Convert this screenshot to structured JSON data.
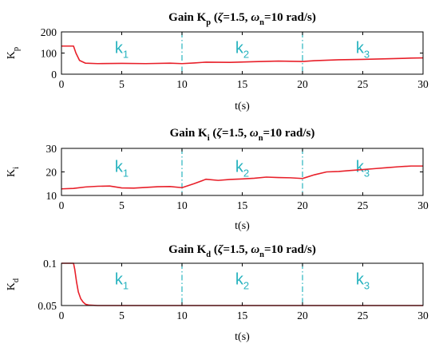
{
  "chart_data": [
    {
      "type": "line",
      "title": {
        "prefix": "Gain K",
        "prefix_sub": "p",
        "rest1": " (",
        "zeta": "ζ",
        "rest2": "=1.5, ",
        "omega": "ω",
        "omega_sub": "n",
        "rest3": "=10 rad/s)"
      },
      "ylabel": "K",
      "ylabel_sub": "p",
      "xlabel": "t(s)",
      "xlim": [
        0,
        30
      ],
      "ylim": [
        0,
        200
      ],
      "yticks": [
        0,
        100,
        200
      ],
      "xticks": [
        0,
        5,
        10,
        15,
        20,
        25,
        30
      ],
      "ytick_labels": [
        "0",
        "100",
        "200"
      ],
      "xtick_labels": [
        "0",
        "5",
        "10",
        "15",
        "20",
        "25",
        "30"
      ],
      "vlines": [
        10,
        20
      ],
      "segments": [
        {
          "label": "k",
          "sub": "1",
          "x": 5
        },
        {
          "label": "k",
          "sub": "2",
          "x": 15
        },
        {
          "label": "k",
          "sub": "3",
          "x": 25
        }
      ],
      "series": [
        {
          "color": "#e8202a",
          "x": [
            0,
            1,
            1.2,
            1.5,
            2,
            3,
            5,
            7,
            9,
            10,
            11,
            12,
            14,
            16,
            18,
            20,
            21,
            23,
            25,
            27,
            29,
            30
          ],
          "y": [
            133,
            133,
            100,
            65,
            52,
            50,
            51,
            50,
            52,
            50,
            53,
            57,
            56,
            59,
            62,
            60,
            64,
            68,
            70,
            73,
            76,
            77
          ]
        }
      ]
    },
    {
      "type": "line",
      "title": {
        "prefix": "Gain K",
        "prefix_sub": "i",
        "rest1": " (",
        "zeta": "ζ",
        "rest2": "=1.5, ",
        "omega": "ω",
        "omega_sub": "n",
        "rest3": "=10 rad/s)"
      },
      "ylabel": "K",
      "ylabel_sub": "i",
      "xlabel": "t(s)",
      "xlim": [
        0,
        30
      ],
      "ylim": [
        10,
        30
      ],
      "yticks": [
        10,
        20,
        30
      ],
      "xticks": [
        0,
        5,
        10,
        15,
        20,
        25,
        30
      ],
      "ytick_labels": [
        "10",
        "20",
        "30"
      ],
      "xtick_labels": [
        "0",
        "5",
        "10",
        "15",
        "20",
        "25",
        "30"
      ],
      "vlines": [
        10,
        20
      ],
      "segments": [
        {
          "label": "k",
          "sub": "1",
          "x": 5
        },
        {
          "label": "k",
          "sub": "2",
          "x": 15
        },
        {
          "label": "k",
          "sub": "3",
          "x": 25
        }
      ],
      "series": [
        {
          "color": "#e8202a",
          "x": [
            0,
            1,
            2,
            3,
            4,
            5,
            6,
            7,
            8,
            9,
            10,
            11,
            12,
            13,
            14,
            15,
            16,
            17,
            18,
            19,
            20,
            21,
            22,
            23,
            24,
            25,
            26,
            27,
            28,
            29,
            30
          ],
          "y": [
            12.8,
            13.0,
            13.6,
            13.9,
            14.0,
            13.2,
            13.1,
            13.4,
            13.7,
            13.8,
            13.3,
            15.0,
            16.9,
            16.4,
            16.8,
            17.0,
            17.3,
            17.8,
            17.6,
            17.5,
            17.2,
            18.8,
            20.0,
            20.2,
            20.6,
            21.0,
            21.4,
            21.8,
            22.2,
            22.5,
            22.5
          ]
        }
      ]
    },
    {
      "type": "line",
      "title": {
        "prefix": "Gain K",
        "prefix_sub": "d",
        "rest1": " (",
        "zeta": "ζ",
        "rest2": "=1.5, ",
        "omega": "ω",
        "omega_sub": "n",
        "rest3": "=10 rad/s)"
      },
      "ylabel": "K",
      "ylabel_sub": "d",
      "xlabel": "t(s)",
      "xlim": [
        0,
        30
      ],
      "ylim": [
        0.05,
        0.1
      ],
      "yticks": [
        0.05,
        0.1
      ],
      "xticks": [
        0,
        5,
        10,
        15,
        20,
        25,
        30
      ],
      "ytick_labels": [
        "0.05",
        "0.1"
      ],
      "xtick_labels": [
        "0",
        "5",
        "10",
        "15",
        "20",
        "25",
        "30"
      ],
      "vlines": [
        10,
        20
      ],
      "segments": [
        {
          "label": "k",
          "sub": "1",
          "x": 5
        },
        {
          "label": "k",
          "sub": "2",
          "x": 15
        },
        {
          "label": "k",
          "sub": "3",
          "x": 25
        }
      ],
      "series": [
        {
          "color": "#e8202a",
          "x": [
            0,
            1.0,
            1.1,
            1.25,
            1.4,
            1.6,
            1.8,
            2.0,
            2.3,
            3,
            10,
            20,
            30
          ],
          "y": [
            0.1,
            0.1,
            0.093,
            0.078,
            0.066,
            0.058,
            0.054,
            0.0515,
            0.0505,
            0.05,
            0.05,
            0.05,
            0.05
          ]
        }
      ]
    }
  ]
}
